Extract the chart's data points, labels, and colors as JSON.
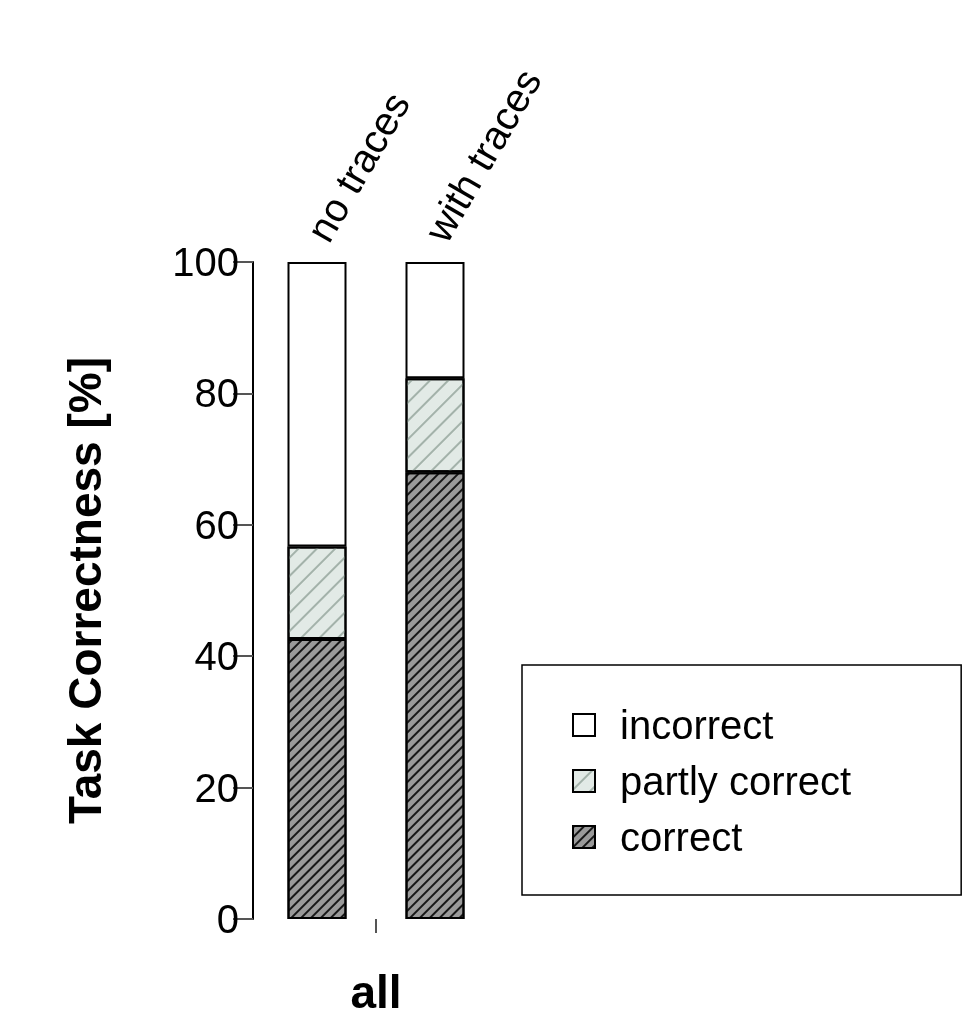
{
  "chart_data": {
    "type": "bar",
    "stacked": true,
    "categories": [
      "no traces",
      "with traces"
    ],
    "xlabel": "all",
    "ylabel": "Task Correctness [%]",
    "ylim": [
      0,
      100
    ],
    "yticks": [
      0,
      20,
      40,
      60,
      80,
      100
    ],
    "grid": false,
    "legend": "bottom right",
    "series": [
      {
        "name": "correct",
        "color": "#9a9a9a",
        "values": [
          42.6,
          68.0
        ]
      },
      {
        "name": "partly correct",
        "color": "#e2eae6",
        "values": [
          14.1,
          14.3
        ]
      },
      {
        "name": "incorrect",
        "color": "#ffffff",
        "values": [
          43.3,
          17.7
        ]
      }
    ]
  }
}
